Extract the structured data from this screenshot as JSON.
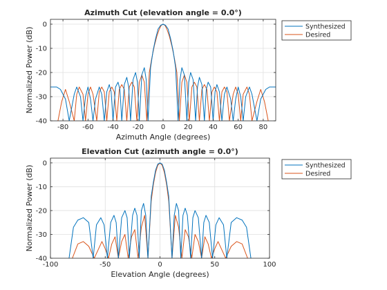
{
  "chart_data": [
    {
      "type": "line",
      "title": "Azimuth Cut (elevation angle = 0.0°)",
      "xlabel": "Azimuth Angle (degrees)",
      "ylabel": "Normalized Power (dB)",
      "xlim": [
        -90,
        90
      ],
      "ylim": [
        -40,
        2
      ],
      "xticks": [
        -80,
        -60,
        -40,
        -20,
        0,
        20,
        40,
        60,
        80
      ],
      "yticks": [
        0,
        -10,
        -20,
        -30,
        -40
      ],
      "grid": true,
      "legend_position": "outside-top-right",
      "series": [
        {
          "name": "Synthesized",
          "color": "#0072BD",
          "x": [
            -90,
            -85,
            -82,
            -78,
            -75,
            -71,
            -69,
            -66,
            -64,
            -62,
            -60,
            -58,
            -56,
            -54,
            -51,
            -49,
            -47,
            -45,
            -43,
            -41.5,
            -40,
            -38,
            -36,
            -34.5,
            -33,
            -31,
            -29,
            -27.5,
            -26,
            -24,
            -22,
            -20.5,
            -19,
            -17,
            -15,
            -13.5,
            -12,
            -10,
            -8,
            -6,
            -4,
            -2,
            0,
            2,
            4,
            6,
            8,
            10,
            12,
            13.5,
            15,
            17,
            19,
            20.5,
            22,
            24,
            26,
            27.5,
            29,
            31,
            33,
            34.5,
            36,
            38,
            40,
            41.5,
            43,
            45,
            47,
            49,
            51,
            54,
            56,
            58,
            60,
            62,
            64,
            66,
            69,
            71,
            75,
            78,
            82,
            85,
            90
          ],
          "y": [
            -26,
            -26,
            -27,
            -31,
            -40,
            -29,
            -26,
            -30,
            -40,
            -30,
            -26,
            -31,
            -40,
            -31,
            -26,
            -29,
            -40,
            -28,
            -25,
            -28,
            -40,
            -26,
            -24,
            -27,
            -40,
            -25,
            -22,
            -26,
            -40,
            -23,
            -20,
            -24,
            -40,
            -21,
            -18,
            -23,
            -40,
            -18,
            -11,
            -6,
            -2,
            -0.5,
            0,
            -0.5,
            -2,
            -6,
            -11,
            -18,
            -40,
            -23,
            -18,
            -21,
            -40,
            -24,
            -20,
            -23,
            -40,
            -26,
            -22,
            -25,
            -40,
            -27,
            -24,
            -26,
            -40,
            -28,
            -25,
            -28,
            -40,
            -29,
            -26,
            -31,
            -40,
            -31,
            -26,
            -30,
            -40,
            -30,
            -26,
            -29,
            -40,
            -31,
            -27,
            -26,
            -26
          ]
        },
        {
          "name": "Desired",
          "color": "#D95319",
          "x": [
            -84,
            -81,
            -78,
            -75,
            -71,
            -69,
            -67,
            -64,
            -62,
            -60,
            -58,
            -56,
            -53,
            -51,
            -49,
            -47,
            -45,
            -43,
            -41,
            -39,
            -37,
            -35,
            -33,
            -31,
            -29,
            -27,
            -25,
            -23,
            -21,
            -19,
            -17,
            -15,
            -13,
            -11,
            -9,
            -7,
            -5,
            -3,
            -1.5,
            0,
            1.5,
            3,
            5,
            7,
            9,
            11,
            13,
            15,
            17,
            19,
            21,
            23,
            25,
            27,
            29,
            31,
            33,
            35,
            37,
            39,
            41,
            43,
            45,
            47,
            49,
            51,
            53,
            56,
            58,
            60,
            62,
            64,
            67,
            69,
            71,
            75,
            78,
            81,
            84
          ],
          "y": [
            -40,
            -32,
            -27,
            -32,
            -40,
            -29,
            -26,
            -29,
            -40,
            -29,
            -26,
            -29,
            -40,
            -28,
            -26,
            -28,
            -40,
            -28,
            -26,
            -28,
            -40,
            -27,
            -25,
            -27,
            -40,
            -26,
            -24,
            -26,
            -40,
            -24,
            -21,
            -24,
            -40,
            -20,
            -14,
            -9,
            -5,
            -2,
            -0.5,
            0,
            -0.5,
            -2,
            -5,
            -9,
            -14,
            -20,
            -40,
            -24,
            -21,
            -24,
            -40,
            -26,
            -24,
            -26,
            -40,
            -27,
            -25,
            -27,
            -40,
            -28,
            -26,
            -28,
            -40,
            -28,
            -26,
            -28,
            -40,
            -29,
            -26,
            -29,
            -40,
            -29,
            -26,
            -29,
            -40,
            -32,
            -27,
            -32,
            -40
          ]
        }
      ]
    },
    {
      "type": "line",
      "title": "Elevation Cut (azimuth angle = 0.0°)",
      "xlabel": "Elevation Angle (degrees)",
      "ylabel": "Normalized Power (dB)",
      "xlim": [
        -100,
        100
      ],
      "ylim": [
        -40,
        2
      ],
      "xticks": [
        -100,
        -50,
        0,
        50,
        100
      ],
      "yticks": [
        0,
        -10,
        -20,
        -30,
        -40
      ],
      "grid": true,
      "legend_position": "outside-top-right",
      "series": [
        {
          "name": "Synthesized",
          "color": "#0072BD",
          "x": [
            -83,
            -79,
            -75,
            -70,
            -65,
            -61,
            -58,
            -54,
            -51,
            -48,
            -45,
            -42,
            -40,
            -38,
            -35,
            -32,
            -30,
            -28,
            -25,
            -23,
            -21,
            -19,
            -17,
            -15,
            -13,
            -11,
            -8,
            -6,
            -4,
            -2,
            0,
            2,
            4,
            6,
            8,
            11,
            13,
            15,
            17,
            19,
            21,
            23,
            25,
            28,
            30,
            32,
            35,
            38,
            40,
            42,
            45,
            48,
            51,
            54,
            58,
            61,
            65,
            70,
            75,
            79,
            83
          ],
          "y": [
            -40,
            -27,
            -24,
            -23,
            -25,
            -40,
            -26,
            -23,
            -26,
            -40,
            -25,
            -22,
            -25,
            -40,
            -23,
            -20,
            -23,
            -40,
            -22,
            -19,
            -22,
            -40,
            -20,
            -17,
            -22,
            -40,
            -14,
            -8,
            -3,
            -0.5,
            0,
            -0.5,
            -3,
            -8,
            -14,
            -40,
            -22,
            -17,
            -20,
            -40,
            -22,
            -19,
            -22,
            -40,
            -23,
            -20,
            -23,
            -40,
            -25,
            -22,
            -25,
            -40,
            -26,
            -23,
            -26,
            -40,
            -25,
            -23,
            -24,
            -27,
            -40
          ]
        },
        {
          "name": "Desired",
          "color": "#D95319",
          "x": [
            -80,
            -75,
            -70,
            -65,
            -60,
            -56,
            -53,
            -50,
            -47,
            -44,
            -41,
            -38,
            -35,
            -32,
            -29,
            -26,
            -23,
            -20,
            -17,
            -14,
            -11,
            -8,
            -6,
            -4,
            -2,
            0,
            2,
            4,
            6,
            8,
            11,
            14,
            17,
            20,
            23,
            26,
            29,
            32,
            35,
            38,
            41,
            44,
            47,
            50,
            53,
            56,
            60,
            65,
            70,
            75,
            80
          ],
          "y": [
            -40,
            -34,
            -33,
            -35,
            -40,
            -36,
            -33,
            -36,
            -40,
            -34,
            -31,
            -40,
            -33,
            -30,
            -40,
            -31,
            -28,
            -40,
            -27,
            -22,
            -40,
            -16,
            -9,
            -4,
            -1,
            0,
            -1,
            -4,
            -9,
            -16,
            -40,
            -22,
            -27,
            -40,
            -28,
            -31,
            -40,
            -30,
            -33,
            -40,
            -31,
            -34,
            -40,
            -36,
            -33,
            -36,
            -40,
            -35,
            -33,
            -34,
            -40
          ]
        }
      ]
    }
  ]
}
